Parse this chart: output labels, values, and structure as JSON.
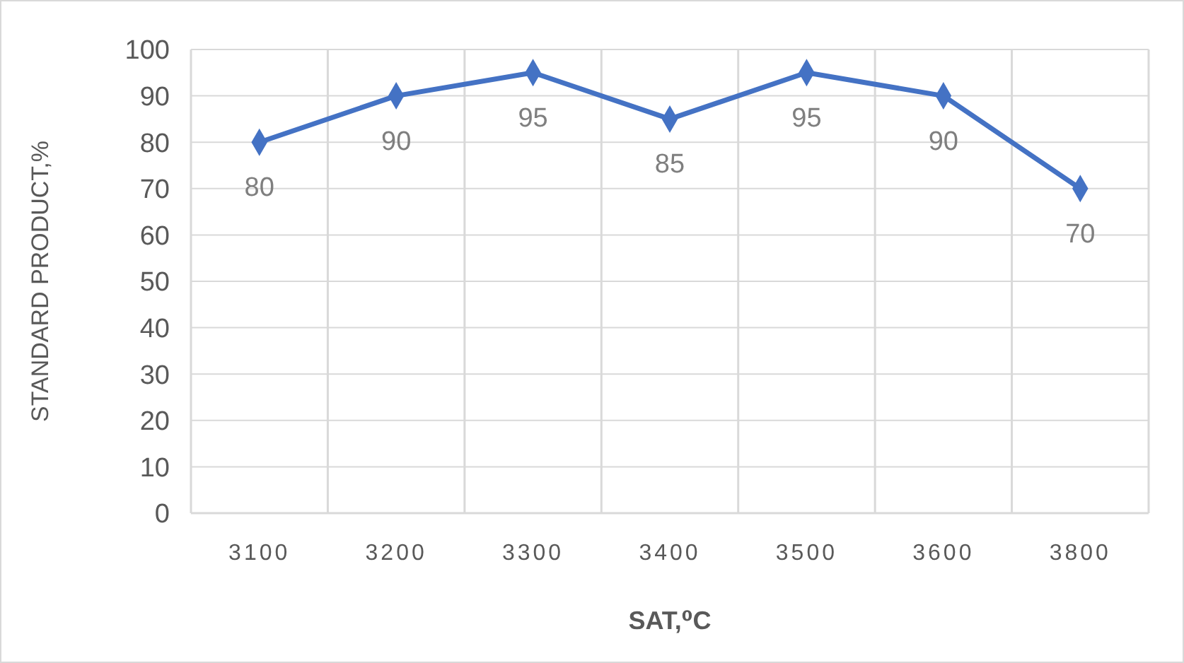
{
  "chart_data": {
    "type": "line",
    "xlabel": "SAT,⁰C",
    "ylabel": "STANDARD PRODUCT,%",
    "categories": [
      "3100",
      "3200",
      "3300",
      "3400",
      "3500",
      "3600",
      "3800"
    ],
    "series": [
      {
        "color": "#4472c4",
        "values": [
          80,
          90,
          95,
          85,
          95,
          90,
          70
        ]
      }
    ],
    "ylim": [
      0,
      100
    ],
    "yticks": [
      0,
      10,
      20,
      30,
      40,
      50,
      60,
      70,
      80,
      90,
      100
    ],
    "grid": true,
    "marker": "diamond",
    "line_style": "solid",
    "data_labels": true
  }
}
